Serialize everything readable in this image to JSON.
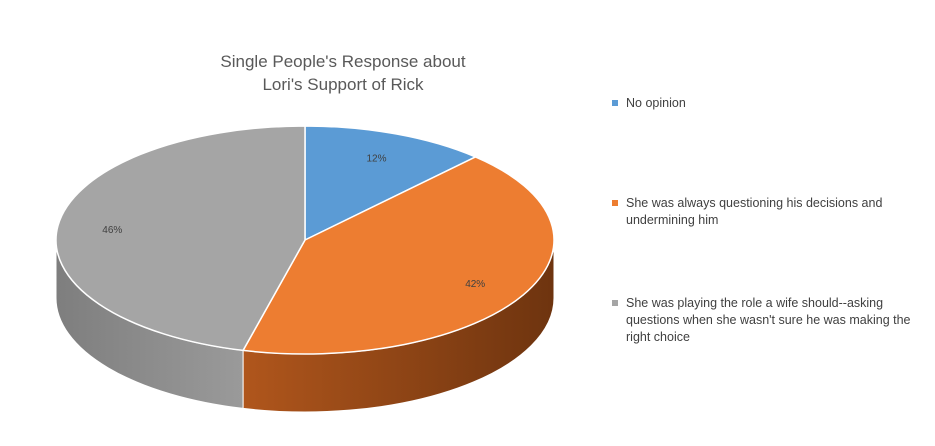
{
  "chart_data": {
    "type": "pie",
    "title": "Single People's Response about Lori's Support of Rick",
    "title_lines": [
      "Single People's Response about",
      "Lori's Support of Rick"
    ],
    "three_d": true,
    "legend_position": "right",
    "categories": [
      "No opinion",
      "She was always questioning his decisions and undermining him",
      "She was playing the role a wife should--asking questions when she wasn't sure he was making the right choice"
    ],
    "values": [
      12,
      42,
      46
    ],
    "value_labels": [
      "12%",
      "42%",
      "46%"
    ],
    "colors": [
      "#5B9BD5",
      "#ED7D31",
      "#A5A5A5"
    ],
    "side_colors": [
      "#3A6E9E",
      "#8A4416",
      "#8C8C8C"
    ]
  }
}
